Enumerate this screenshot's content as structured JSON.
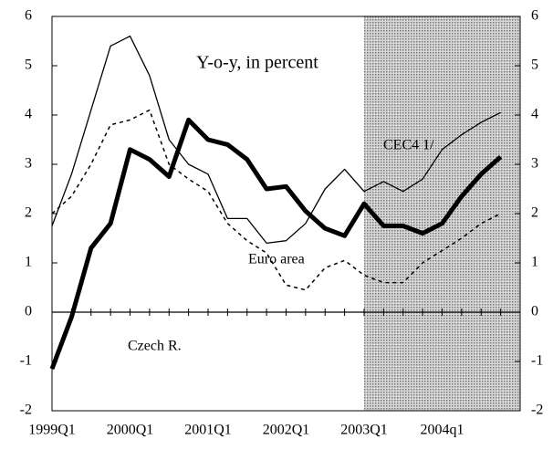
{
  "chart_data": {
    "type": "line",
    "title": "Y-o-y, in percent",
    "categories": [
      "1999Q1",
      null,
      null,
      null,
      "2000Q1",
      null,
      null,
      null,
      "2001Q1",
      null,
      null,
      null,
      "2002Q1",
      null,
      null,
      null,
      "2003Q1",
      null,
      null,
      null,
      "2004q1",
      null,
      null,
      null
    ],
    "series": [
      {
        "name": "CEC4 1/",
        "color": "#000000",
        "style": "thin",
        "values": [
          1.75,
          2.8,
          4.1,
          5.4,
          5.6,
          4.8,
          3.5,
          3.0,
          2.8,
          1.9,
          1.9,
          1.4,
          1.45,
          1.8,
          2.5,
          2.9,
          2.45,
          2.65,
          2.45,
          2.7,
          3.3,
          3.6,
          3.85,
          4.05
        ]
      },
      {
        "name": "Euro area",
        "color": "#000000",
        "style": "dashed",
        "values": [
          2.0,
          2.35,
          3.0,
          3.8,
          3.9,
          4.1,
          3.0,
          2.7,
          2.45,
          1.8,
          1.45,
          1.2,
          0.55,
          0.45,
          0.9,
          1.05,
          0.75,
          0.6,
          0.6,
          1.0,
          1.25,
          1.5,
          1.8,
          2.0
        ]
      },
      {
        "name": "Czech R.",
        "color": "#000000",
        "style": "thick",
        "values": [
          -1.15,
          -0.1,
          1.3,
          1.8,
          3.3,
          3.1,
          2.75,
          3.9,
          3.5,
          3.4,
          3.1,
          2.5,
          2.55,
          2.05,
          1.7,
          1.55,
          2.2,
          1.75,
          1.75,
          1.6,
          1.8,
          2.35,
          2.8,
          3.15
        ]
      }
    ],
    "shaded_from": "2003Q1",
    "ylim": [
      -2,
      6
    ],
    "yticks": [
      -2,
      -1,
      0,
      1,
      2,
      3,
      4,
      5,
      6
    ],
    "y2lim": [
      -2,
      6
    ],
    "y2ticks": [
      -2,
      -1,
      0,
      1,
      2,
      3,
      4,
      5,
      6
    ]
  }
}
